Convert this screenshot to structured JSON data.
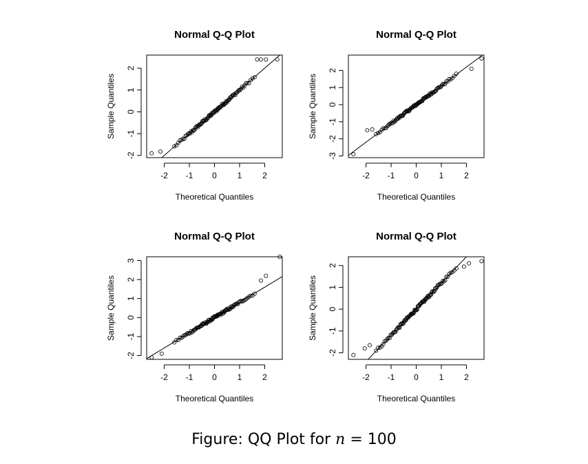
{
  "chart_data": [
    {
      "type": "scatter",
      "title": "Normal Q-Q Plot",
      "xlabel": "Theoretical Quantiles",
      "ylabel": "Sample Quantiles",
      "xlim": [
        -2.7,
        2.7
      ],
      "ylim": [
        -2.1,
        2.6
      ],
      "xticks": [
        -2,
        -1,
        0,
        1,
        2
      ],
      "yticks": [
        -2,
        -1,
        0,
        1,
        2
      ],
      "line": {
        "intercept": 0.0,
        "slope": 1.0
      },
      "outliers": [
        [
          -2.5,
          -1.9
        ],
        [
          -2.15,
          -1.82
        ],
        [
          1.7,
          2.4
        ],
        [
          1.85,
          2.4
        ],
        [
          2.05,
          2.4
        ],
        [
          2.5,
          2.4
        ]
      ]
    },
    {
      "type": "scatter",
      "title": "Normal Q-Q Plot",
      "xlabel": "Theoretical Quantiles",
      "ylabel": "Sample Quantiles",
      "xlim": [
        -2.7,
        2.7
      ],
      "ylim": [
        -3.1,
        2.9
      ],
      "xticks": [
        -2,
        -1,
        0,
        1,
        2
      ],
      "yticks": [
        -3,
        -2,
        -1,
        0,
        1,
        2
      ],
      "line": {
        "intercept": 0.0,
        "slope": 1.1
      },
      "outliers": [
        [
          -2.5,
          -2.9
        ],
        [
          -1.95,
          -1.5
        ],
        [
          -1.75,
          -1.45
        ],
        [
          2.2,
          2.1
        ],
        [
          2.6,
          2.7
        ]
      ]
    },
    {
      "type": "scatter",
      "title": "Normal Q-Q Plot",
      "xlabel": "Theoretical Quantiles",
      "ylabel": "Sample Quantiles",
      "xlim": [
        -2.7,
        2.7
      ],
      "ylim": [
        -2.2,
        3.2
      ],
      "xticks": [
        -2,
        -1,
        0,
        1,
        2
      ],
      "yticks": [
        -2,
        -1,
        0,
        1,
        2,
        3
      ],
      "line": {
        "intercept": 0.0,
        "slope": 0.8
      },
      "outliers": [
        [
          -2.5,
          -2.1
        ],
        [
          -2.1,
          -1.9
        ],
        [
          1.85,
          1.95
        ],
        [
          2.05,
          2.2
        ],
        [
          2.6,
          3.2
        ]
      ]
    },
    {
      "type": "scatter",
      "title": "Normal Q-Q Plot",
      "xlabel": "Theoretical Quantiles",
      "ylabel": "Sample Quantiles",
      "xlim": [
        -2.7,
        2.7
      ],
      "ylim": [
        -2.3,
        2.4
      ],
      "xticks": [
        -2,
        -1,
        0,
        1,
        2
      ],
      "yticks": [
        -2,
        -1,
        0,
        1,
        2
      ],
      "line": {
        "intercept": 0.0,
        "slope": 1.2
      },
      "outliers": [
        [
          -2.5,
          -2.1
        ],
        [
          -2.05,
          -1.8
        ],
        [
          -1.85,
          -1.65
        ],
        [
          1.9,
          1.95
        ],
        [
          2.1,
          2.1
        ],
        [
          2.6,
          2.2
        ]
      ]
    }
  ],
  "caption": {
    "prefix": "Figure: QQ Plot for ",
    "var": "n",
    "op": " = ",
    "value": "100"
  }
}
